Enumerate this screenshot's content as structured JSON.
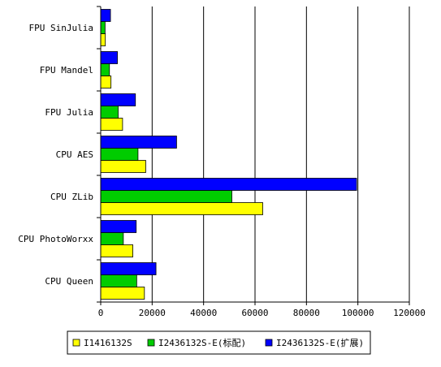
{
  "chart_data": {
    "type": "bar",
    "orientation": "horizontal",
    "title": "",
    "xlabel": "",
    "ylabel": "",
    "categories": [
      "FPU SinJulia",
      "FPU Mandel",
      "FPU Julia",
      "CPU AES",
      "CPU ZLib",
      "CPU PhotoWorxx",
      "CPU Queen"
    ],
    "xlim": [
      0,
      120000
    ],
    "xticks": [
      0,
      20000,
      40000,
      60000,
      80000,
      100000,
      120000
    ],
    "grid": "vertical",
    "legend": "bottom",
    "series": [
      {
        "name": "I1416132S",
        "color": "#ffff00",
        "values": [
          1800,
          4000,
          8500,
          17500,
          63000,
          12500,
          17000
        ]
      },
      {
        "name": "I2436132S-E(标配)",
        "color": "#00cc00",
        "values": [
          1700,
          3400,
          6800,
          14500,
          51000,
          8800,
          14000
        ]
      },
      {
        "name": "I2436132S-E(扩展)",
        "color": "#0000ff",
        "values": [
          3800,
          6500,
          13500,
          29500,
          99500,
          13800,
          21500
        ]
      }
    ]
  }
}
